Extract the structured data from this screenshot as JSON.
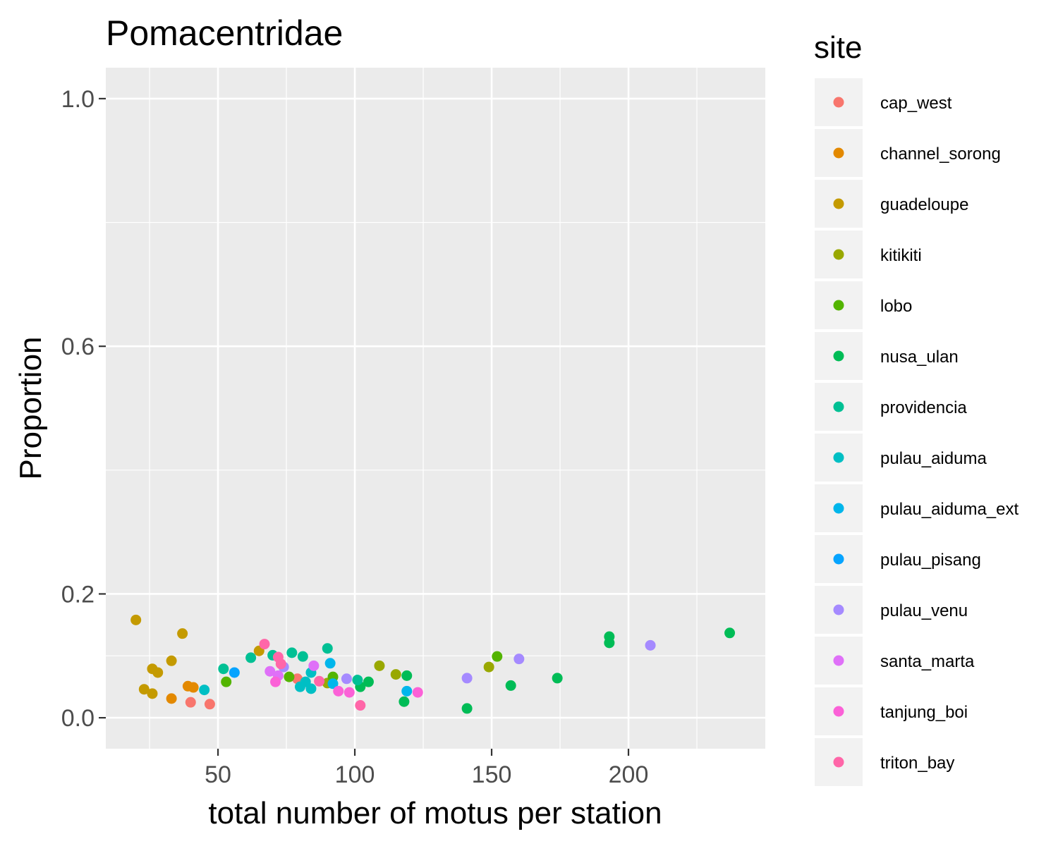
{
  "chart_data": {
    "type": "scatter",
    "title": "Pomacentridae",
    "xlabel": "total number of motus per station",
    "ylabel": "Proportion",
    "xlim": [
      9,
      250
    ],
    "ylim": [
      -0.05,
      1.05
    ],
    "x_ticks": [
      50,
      100,
      150,
      200
    ],
    "x_tick_labels": [
      "50",
      "100",
      "150",
      "200"
    ],
    "y_ticks": [
      0.0,
      0.2,
      0.6,
      1.0
    ],
    "y_tick_labels": [
      "0.0",
      "0.2",
      "0.6",
      "1.0"
    ],
    "grid": true,
    "legend_title": "site",
    "legend_position": "right",
    "series": [
      {
        "name": "cap_west",
        "color": "#F8766D",
        "points": [
          [
            40,
            0.025
          ],
          [
            47,
            0.022
          ],
          [
            79,
            0.063
          ]
        ]
      },
      {
        "name": "channel_sorong",
        "color": "#E38900",
        "points": [
          [
            33,
            0.031
          ],
          [
            39,
            0.051
          ],
          [
            41,
            0.049
          ]
        ]
      },
      {
        "name": "guadeloupe",
        "color": "#C49A00",
        "points": [
          [
            20,
            0.158
          ],
          [
            23,
            0.046
          ],
          [
            26,
            0.079
          ],
          [
            26,
            0.039
          ],
          [
            28,
            0.073
          ],
          [
            33,
            0.092
          ],
          [
            37,
            0.136
          ],
          [
            65,
            0.108
          ]
        ]
      },
      {
        "name": "kitikiti",
        "color": "#99A800",
        "points": [
          [
            90,
            0.056
          ],
          [
            109,
            0.084
          ],
          [
            115,
            0.07
          ],
          [
            149,
            0.082
          ]
        ]
      },
      {
        "name": "lobo",
        "color": "#53B400",
        "points": [
          [
            53,
            0.058
          ],
          [
            76,
            0.066
          ],
          [
            92,
            0.066
          ],
          [
            152,
            0.099
          ]
        ]
      },
      {
        "name": "nusa_ulan",
        "color": "#00BC56",
        "points": [
          [
            102,
            0.05
          ],
          [
            105,
            0.058
          ],
          [
            118,
            0.026
          ],
          [
            119,
            0.068
          ],
          [
            141,
            0.015
          ],
          [
            157,
            0.052
          ],
          [
            174,
            0.064
          ],
          [
            193,
            0.131
          ],
          [
            193,
            0.121
          ],
          [
            237,
            0.137
          ]
        ]
      },
      {
        "name": "providencia",
        "color": "#00C094",
        "points": [
          [
            52,
            0.079
          ],
          [
            62,
            0.097
          ],
          [
            70,
            0.101
          ],
          [
            77,
            0.105
          ],
          [
            81,
            0.099
          ],
          [
            90,
            0.112
          ],
          [
            101,
            0.061
          ]
        ]
      },
      {
        "name": "pulau_aiduma",
        "color": "#00BFC4",
        "points": [
          [
            45,
            0.045
          ],
          [
            80,
            0.05
          ],
          [
            82,
            0.058
          ],
          [
            84,
            0.047
          ],
          [
            84,
            0.073
          ]
        ]
      },
      {
        "name": "pulau_aiduma_ext",
        "color": "#00B6EB",
        "points": [
          [
            91,
            0.088
          ],
          [
            92,
            0.055
          ],
          [
            119,
            0.043
          ]
        ]
      },
      {
        "name": "pulau_pisang",
        "color": "#06A4FF",
        "points": [
          [
            56,
            0.073
          ]
        ]
      },
      {
        "name": "pulau_venu",
        "color": "#A58AFF",
        "points": [
          [
            74,
            0.082
          ],
          [
            97,
            0.063
          ],
          [
            141,
            0.064
          ],
          [
            160,
            0.095
          ],
          [
            208,
            0.117
          ]
        ]
      },
      {
        "name": "santa_marta",
        "color": "#DF70F8",
        "points": [
          [
            69,
            0.075
          ],
          [
            72,
            0.068
          ],
          [
            85,
            0.084
          ]
        ]
      },
      {
        "name": "tanjung_boi",
        "color": "#FB61D7",
        "points": [
          [
            71,
            0.058
          ],
          [
            94,
            0.043
          ],
          [
            98,
            0.041
          ],
          [
            123,
            0.041
          ]
        ]
      },
      {
        "name": "triton_bay",
        "color": "#FF66A8",
        "points": [
          [
            67,
            0.119
          ],
          [
            72,
            0.098
          ],
          [
            73,
            0.087
          ],
          [
            87,
            0.059
          ],
          [
            102,
            0.02
          ]
        ]
      }
    ]
  }
}
